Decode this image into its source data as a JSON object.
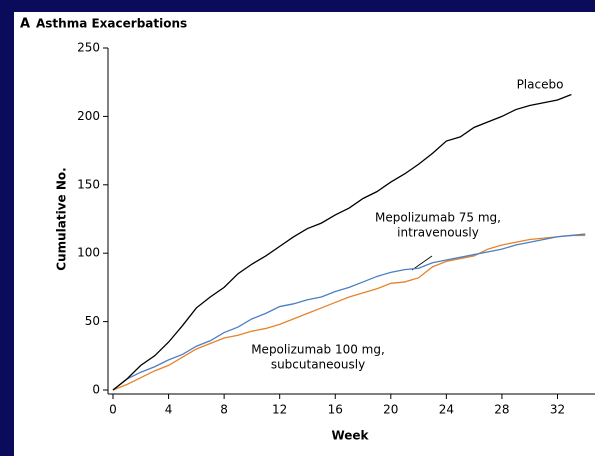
{
  "chart_data": {
    "type": "line",
    "panel_label": "A",
    "title": "Asthma Exacerbations",
    "xlabel": "Week",
    "ylabel": "Cumulative No.",
    "x": [
      0,
      1,
      2,
      3,
      4,
      5,
      6,
      7,
      8,
      9,
      10,
      11,
      12,
      13,
      14,
      15,
      16,
      17,
      18,
      19,
      20,
      21,
      22,
      23,
      24,
      25,
      26,
      27,
      28,
      29,
      30,
      31,
      32,
      33,
      34
    ],
    "series": [
      {
        "name": "Placebo",
        "color": "#000000",
        "values": [
          0,
          8,
          18,
          25,
          35,
          47,
          60,
          68,
          75,
          85,
          92,
          98,
          105,
          112,
          118,
          122,
          128,
          133,
          140,
          145,
          152,
          158,
          165,
          173,
          182,
          185,
          192,
          196,
          200,
          205,
          208,
          210,
          212,
          216,
          null
        ]
      },
      {
        "name": [
          "Mepolizumab 75 mg,",
          "intravenously"
        ],
        "color": "#4a7fc4",
        "values": [
          0,
          8,
          13,
          17,
          22,
          26,
          32,
          36,
          42,
          46,
          52,
          56,
          61,
          63,
          66,
          68,
          72,
          75,
          79,
          83,
          86,
          88,
          89,
          93,
          95,
          97,
          99,
          101,
          103,
          106,
          108,
          110,
          112,
          113,
          114
        ]
      },
      {
        "name": [
          "Mepolizumab 100 mg,",
          "subcutaneously"
        ],
        "color": "#e8822a",
        "values": [
          0,
          4,
          9,
          14,
          18,
          24,
          30,
          34,
          38,
          40,
          43,
          45,
          48,
          52,
          56,
          60,
          64,
          68,
          71,
          74,
          78,
          79,
          82,
          90,
          94,
          96,
          98,
          103,
          106,
          108,
          110,
          111,
          112,
          113,
          113
        ]
      }
    ],
    "xlim": [
      0,
      34.7
    ],
    "xticks": [
      0,
      4,
      8,
      12,
      16,
      20,
      24,
      28,
      32
    ],
    "ylim": [
      0,
      250
    ],
    "yticks": [
      0,
      50,
      100,
      150,
      200,
      250
    ]
  }
}
